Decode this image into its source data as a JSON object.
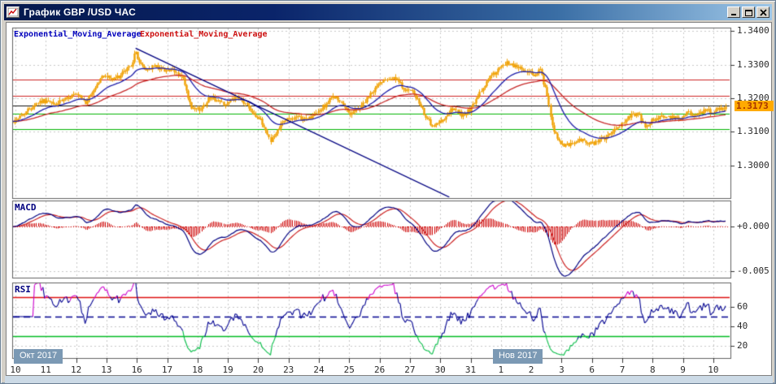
{
  "window": {
    "title": "График GBP /USD ЧАС",
    "buttons": [
      {
        "name": "minimize"
      },
      {
        "name": "maximize"
      },
      {
        "name": "close"
      }
    ]
  },
  "colors": {
    "titlebar_left": "#0a246a",
    "titlebar_right": "#9ec7e8",
    "month_box_bg": "#7b99b4",
    "price_tag_bg": "#ffaa00",
    "price_tag_text": "#a63300",
    "grid": "#c6c6c6",
    "panel_border": "#606060"
  },
  "chart_data": {
    "type": "candlestick",
    "instrument": "GBP /USD",
    "timeframe": "ЧАС",
    "x_axis": {
      "day_labels": [
        "10",
        "11",
        "12",
        "13",
        "16",
        "17",
        "18",
        "19",
        "20",
        "23",
        "24",
        "25",
        "26",
        "27",
        "30",
        "31",
        "1",
        "2",
        "3",
        "6",
        "7",
        "8",
        "9",
        "10"
      ],
      "month_markers": [
        {
          "label": "Окт 2017",
          "day_index": 0
        },
        {
          "label": "Нов 2017",
          "day_index": 16
        }
      ]
    },
    "panels": {
      "price": {
        "indicator_labels": [
          {
            "text": "Exponential_Moving_Average",
            "color": "#0000bb"
          },
          {
            "text": "Exponential_Moving_Average",
            "color": "#cc1111"
          }
        ],
        "current_price": "1.3173",
        "ylim": [
          1.2903,
          1.341
        ],
        "yticks": [
          {
            "v": 1.34,
            "label": "1.3400"
          },
          {
            "v": 1.33,
            "label": "1.3300"
          },
          {
            "v": 1.32,
            "label": "1.3200"
          },
          {
            "v": 1.31,
            "label": "1.3100"
          },
          {
            "v": 1.3,
            "label": "1.3000"
          }
        ],
        "hlines": [
          {
            "price": 1.3255,
            "color": "#cc2222"
          },
          {
            "price": 1.3207,
            "color": "#cc2222"
          },
          {
            "price": 1.3178,
            "color": "#111111"
          },
          {
            "price": 1.3154,
            "color": "#00b300"
          },
          {
            "price": 1.3108,
            "color": "#00b300"
          }
        ],
        "trendline": {
          "points": [
            [
              3.96,
              1.3349
            ],
            [
              14.3,
              1.2906
            ]
          ],
          "color": "#000080"
        },
        "candle_color": "#f0a000",
        "ema_fast": {
          "period": 21,
          "color": "#1c1ca8"
        },
        "ema_slow": {
          "period": 55,
          "color": "#c62828"
        },
        "bars_per_day": 18,
        "noise": 0.0009,
        "price_path": [
          [
            -0.1,
            1.313
          ],
          [
            0.2,
            1.315
          ],
          [
            0.45,
            1.3168
          ],
          [
            0.75,
            1.319
          ],
          [
            1.0,
            1.3192
          ],
          [
            1.3,
            1.318
          ],
          [
            1.6,
            1.3195
          ],
          [
            1.9,
            1.321
          ],
          [
            2.1,
            1.3205
          ],
          [
            2.3,
            1.3185
          ],
          [
            2.6,
            1.323
          ],
          [
            2.9,
            1.327
          ],
          [
            3.2,
            1.3255
          ],
          [
            3.5,
            1.327
          ],
          [
            3.8,
            1.33
          ],
          [
            3.95,
            1.3338
          ],
          [
            4.1,
            1.33
          ],
          [
            4.3,
            1.3285
          ],
          [
            4.6,
            1.3295
          ],
          [
            4.9,
            1.3285
          ],
          [
            5.2,
            1.328
          ],
          [
            5.5,
            1.3262
          ],
          [
            5.65,
            1.321
          ],
          [
            5.8,
            1.3165
          ],
          [
            6.1,
            1.3168
          ],
          [
            6.4,
            1.3205
          ],
          [
            6.7,
            1.319
          ],
          [
            6.95,
            1.3182
          ],
          [
            7.2,
            1.32
          ],
          [
            7.5,
            1.319
          ],
          [
            7.8,
            1.316
          ],
          [
            8.1,
            1.313
          ],
          [
            8.4,
            1.3075
          ],
          [
            8.55,
            1.309
          ],
          [
            8.75,
            1.313
          ],
          [
            9.1,
            1.3142
          ],
          [
            9.5,
            1.3138
          ],
          [
            9.8,
            1.3145
          ],
          [
            10.2,
            1.318
          ],
          [
            10.5,
            1.3208
          ],
          [
            10.8,
            1.3175
          ],
          [
            11.0,
            1.3155
          ],
          [
            11.3,
            1.3168
          ],
          [
            11.6,
            1.32
          ],
          [
            11.9,
            1.3235
          ],
          [
            12.2,
            1.3262
          ],
          [
            12.5,
            1.3258
          ],
          [
            12.8,
            1.323
          ],
          [
            13.1,
            1.3215
          ],
          [
            13.4,
            1.3165
          ],
          [
            13.75,
            1.3112
          ],
          [
            14.1,
            1.314
          ],
          [
            14.4,
            1.3168
          ],
          [
            14.7,
            1.315
          ],
          [
            15.0,
            1.3165
          ],
          [
            15.3,
            1.3215
          ],
          [
            15.6,
            1.3262
          ],
          [
            15.9,
            1.3282
          ],
          [
            16.2,
            1.3305
          ],
          [
            16.5,
            1.3295
          ],
          [
            16.8,
            1.3283
          ],
          [
            17.05,
            1.327
          ],
          [
            17.3,
            1.3282
          ],
          [
            17.5,
            1.3215
          ],
          [
            17.65,
            1.313
          ],
          [
            17.85,
            1.3075
          ],
          [
            18.05,
            1.3055
          ],
          [
            18.3,
            1.3062
          ],
          [
            18.6,
            1.3078
          ],
          [
            18.9,
            1.3062
          ],
          [
            19.1,
            1.3068
          ],
          [
            19.4,
            1.3082
          ],
          [
            19.7,
            1.3098
          ],
          [
            20.0,
            1.3128
          ],
          [
            20.3,
            1.3152
          ],
          [
            20.55,
            1.3148
          ],
          [
            20.75,
            1.3118
          ],
          [
            21.0,
            1.3135
          ],
          [
            21.3,
            1.3148
          ],
          [
            21.6,
            1.3142
          ],
          [
            21.9,
            1.3138
          ],
          [
            22.15,
            1.3158
          ],
          [
            22.4,
            1.3148
          ],
          [
            22.7,
            1.3162
          ],
          [
            23.0,
            1.316
          ],
          [
            23.2,
            1.3168
          ],
          [
            23.4,
            1.3173
          ]
        ]
      },
      "macd": {
        "label": "MACD",
        "ylim": [
          -0.00573,
          0.00291
        ],
        "yticks": [
          {
            "v": 0,
            "label": "+0.000"
          },
          {
            "v": -0.005,
            "label": "-0.005"
          }
        ],
        "fast": 12,
        "slow": 26,
        "signal": 9,
        "line_color": "#000080",
        "signal_color": "#cc2222",
        "histogram_color": "#cc0000",
        "zero_line_color": "#cc0000"
      },
      "rsi": {
        "label": "RSI",
        "period": 14,
        "ylim": [
          7.5,
          85
        ],
        "yticks": [
          {
            "v": 60,
            "label": "60"
          },
          {
            "v": 40,
            "label": "40"
          },
          {
            "v": 20,
            "label": "20"
          }
        ],
        "levels": {
          "overbought": {
            "value": 70,
            "color": "#dd1111"
          },
          "mid": {
            "value": 50,
            "color": "#000090"
          },
          "oversold": {
            "value": 30,
            "color": "#00bb22"
          }
        },
        "line_color": "#000090",
        "above_color": "#cc00cc",
        "below_color": "#00bb44"
      }
    }
  }
}
